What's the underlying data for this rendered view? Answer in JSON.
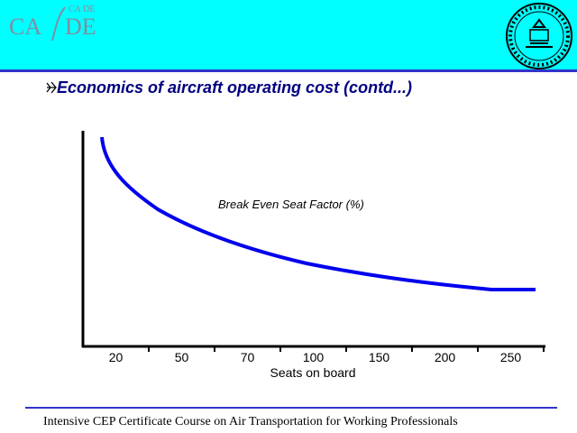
{
  "slide": {
    "logo": {
      "left": "CA",
      "right": "DE",
      "small_left": "CA",
      "small_right": "DE"
    },
    "title": "Economics of aircraft operating cost (contd...)",
    "chart": {
      "curve_label": "Break Even Seat Factor (%)",
      "x_label": "Seats on board",
      "x_labels": [
        "20",
        "50",
        "70",
        "100",
        "150",
        "200",
        "250"
      ]
    },
    "footer": "Intensive CEP Certificate Course on Air Transportation for Working Professionals"
  }
}
